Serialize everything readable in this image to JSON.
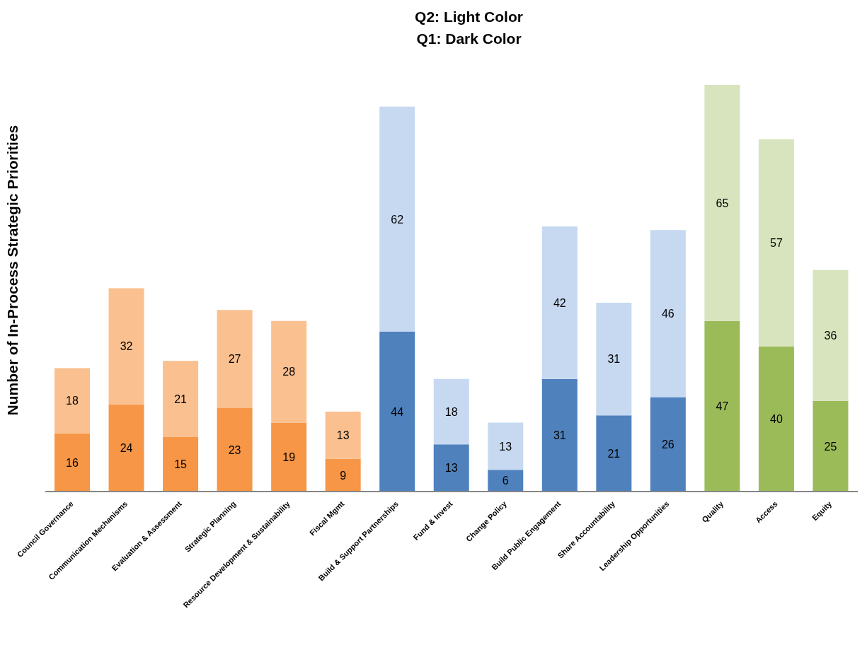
{
  "chart_data": {
    "type": "bar",
    "title": "Q2: Light Color",
    "subtitle": "Q1: Dark Color",
    "ylabel": "Number of In-Process Strategic Priorities",
    "categories": [
      "Council Governance",
      "Communication Mechanisms",
      "Evaluation & Assessment",
      "Strategic Planning",
      "Resource Development & Sustainability",
      "Fiscal Mgmt",
      "Build & Support Partnerships",
      "Fund & Invest",
      "Change Policy",
      "Build Public Engagement",
      "Share Accountability",
      "Leadership Opportunities",
      "Quality",
      "Access",
      "Equity"
    ],
    "stacked": true,
    "data_labels": true,
    "grid": false,
    "legend": false,
    "tick_labels": "x",
    "series": [
      {
        "values": [
          16,
          24,
          15,
          23,
          19,
          9,
          44,
          13,
          6,
          31,
          21,
          26,
          47,
          40,
          25
        ],
        "colors": [
          "#f79646",
          "#f79646",
          "#f79646",
          "#f79646",
          "#f79646",
          "#f79646",
          "#4f81bd",
          "#4f81bd",
          "#4f81bd",
          "#4f81bd",
          "#4f81bd",
          "#4f81bd",
          "#9bbb59",
          "#9bbb59",
          "#9bbb59"
        ]
      },
      {
        "values": [
          18,
          32,
          21,
          27,
          28,
          13,
          62,
          18,
          13,
          42,
          31,
          46,
          65,
          57,
          36
        ],
        "colors": [
          "#fac090",
          "#fac090",
          "#fac090",
          "#fac090",
          "#fac090",
          "#fac090",
          "#c6d9f1",
          "#c6d9f1",
          "#c6d9f1",
          "#c6d9f1",
          "#c6d9f1",
          "#c6d9f1",
          "#d7e4bd",
          "#d7e4bd",
          "#d7e4bd"
        ]
      }
    ]
  }
}
